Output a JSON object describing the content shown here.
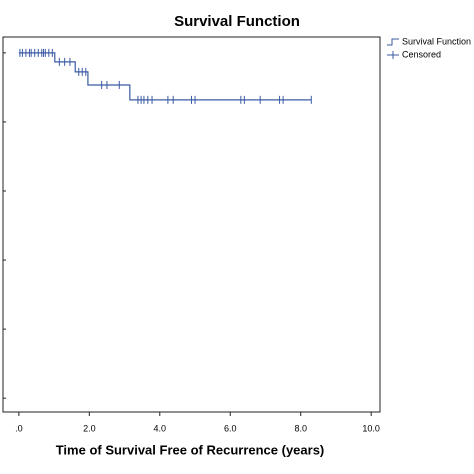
{
  "chart_data": {
    "type": "step",
    "title": "Survival Function",
    "x_label": "Time of Survival Free of Recurrence (years)",
    "xlim": [
      -0.45,
      10.25
    ],
    "ylim": [
      -0.04,
      1.046
    ],
    "xticks": [
      {
        "value": 0,
        "label": ".0"
      },
      {
        "value": 2,
        "label": "2.0"
      },
      {
        "value": 4,
        "label": "4.0"
      },
      {
        "value": 6,
        "label": "6.0"
      },
      {
        "value": 8,
        "label": "8.0"
      },
      {
        "value": 10,
        "label": "10.0"
      }
    ],
    "yticks": [
      0,
      0.2,
      0.4,
      0.6,
      0.8,
      1
    ],
    "series": [
      {
        "name": "Survival Function",
        "color": "#3b5ba5",
        "marker": "line",
        "x": [
          0,
          1.02,
          1.02,
          1.6,
          1.6,
          1.96,
          1.96,
          3.15,
          3.15,
          8.3
        ],
        "values": [
          1,
          1,
          0.974,
          0.974,
          0.945,
          0.945,
          0.907,
          0.907,
          0.864,
          0.864
        ]
      },
      {
        "name": "Censored",
        "color": "#3b5ba5",
        "marker": "plus",
        "x": [
          0.03,
          0.1,
          0.2,
          0.3,
          0.35,
          0.45,
          0.55,
          0.65,
          0.7,
          0.75,
          0.85,
          0.95,
          1.15,
          1.3,
          1.45,
          1.7,
          1.8,
          1.9,
          2.35,
          2.5,
          2.85,
          3.38,
          3.47,
          3.55,
          3.66,
          3.78,
          4.23,
          4.38,
          4.9,
          5.0,
          6.3,
          6.4,
          6.85,
          7.4,
          7.5,
          8.3
        ],
        "values": [
          1,
          1,
          1,
          1,
          1,
          1,
          1,
          1,
          1,
          1,
          1,
          1,
          0.974,
          0.974,
          0.974,
          0.945,
          0.945,
          0.945,
          0.907,
          0.907,
          0.907,
          0.864,
          0.864,
          0.864,
          0.864,
          0.864,
          0.864,
          0.864,
          0.864,
          0.864,
          0.864,
          0.864,
          0.864,
          0.864,
          0.864,
          0.864
        ]
      }
    ]
  }
}
